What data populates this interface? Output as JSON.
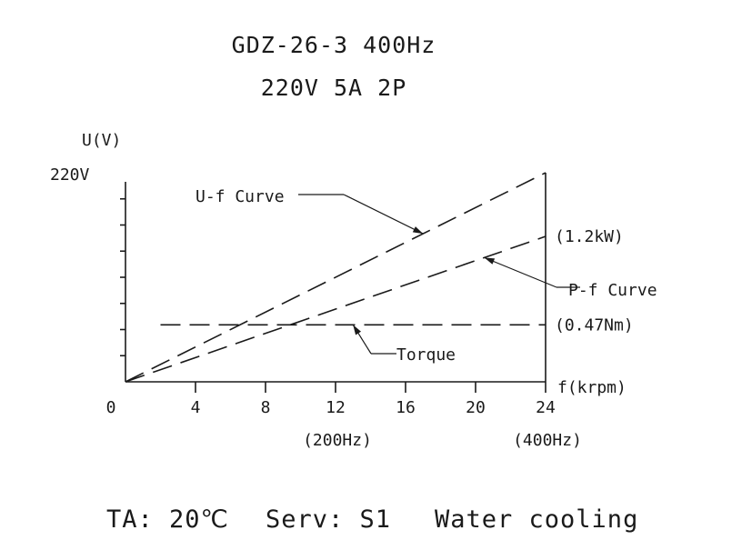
{
  "header": {
    "title_line1": "GDZ-26-3 400Hz",
    "title_line2": "220V 5A 2P"
  },
  "footer": {
    "ambient": "TA: 20℃",
    "service": "Serv: S1",
    "cooling": "Water cooling"
  },
  "chart_data": {
    "type": "line",
    "ylabel": "U(V)",
    "ymax_label": "220V",
    "xlabel": "f(krpm)",
    "origin_label": "0",
    "xlim": [
      0,
      24
    ],
    "ylim": [
      0,
      220
    ],
    "grid": false,
    "x_ticks": [
      {
        "value": 4,
        "label": "4",
        "sub": ""
      },
      {
        "value": 8,
        "label": "8",
        "sub": ""
      },
      {
        "value": 12,
        "label": "12",
        "sub": "(200Hz)"
      },
      {
        "value": 16,
        "label": "16",
        "sub": ""
      },
      {
        "value": 20,
        "label": "20",
        "sub": ""
      },
      {
        "value": 24,
        "label": "24",
        "sub": "(400Hz)"
      }
    ],
    "y_minor_ticks": [
      27.5,
      55,
      82.5,
      110,
      137.5,
      165,
      192.5,
      220
    ],
    "series": [
      {
        "name": "U-f Curve",
        "x": [
          0,
          24
        ],
        "y": [
          0,
          220
        ],
        "end_label": ""
      },
      {
        "name": "P-f Curve",
        "x": [
          0,
          24
        ],
        "y": [
          0,
          153
        ],
        "end_label": "(1.2kW)"
      },
      {
        "name": "Torque",
        "x": [
          2,
          24
        ],
        "y": [
          60,
          60
        ],
        "end_label": "(0.47Nm)"
      }
    ],
    "annotations": [
      {
        "text": "U-f Curve",
        "series": 0,
        "at_x": 17
      },
      {
        "text": "P-f Curve",
        "series": 1,
        "at_x": 20.5
      },
      {
        "text": "Torque",
        "series": 2,
        "at_x": 13
      }
    ]
  }
}
